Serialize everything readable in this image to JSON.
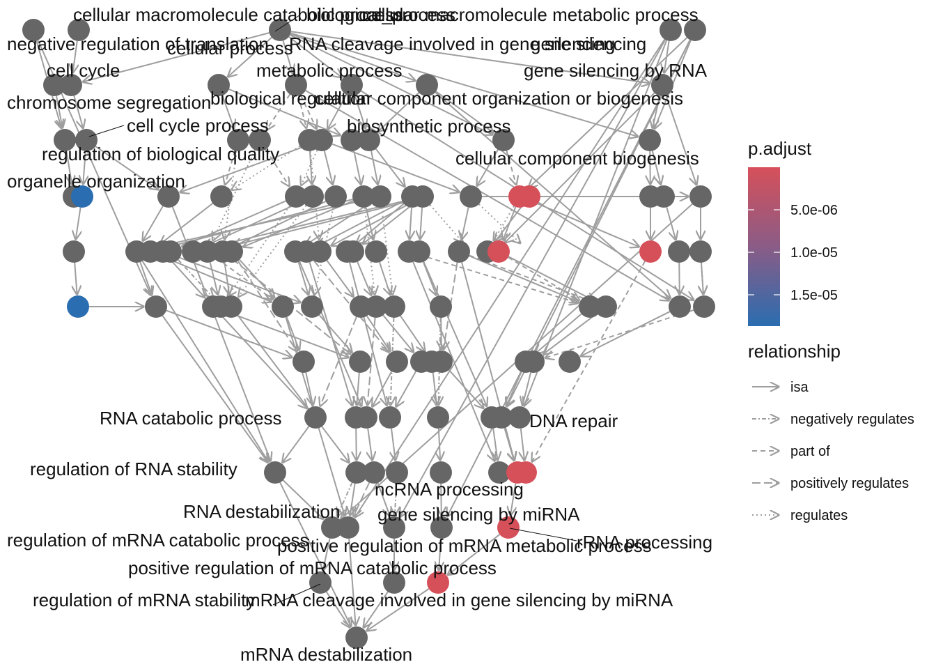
{
  "colors": {
    "node_default": "#666666",
    "node_low": "#2a6db0",
    "node_high": "#d6505a",
    "edge": "#9e9e9e"
  },
  "labels": {
    "cellular_macromolecule_catabolic_process": "cellular macromolecule catabolic process",
    "biological_process": "biological_process",
    "cellular_macromolecule_metabolic_process": "cellular macromolecule metabolic process",
    "negative_regulation_of_translation": "negative regulation of translation",
    "cellular_process": "cellular process",
    "rna_cleavage_gene_silencing": "RNA cleavage involved in gene silencing",
    "gene_silencing": "gene silencing",
    "cell_cycle": "cell cycle",
    "metabolic_process": "metabolic process",
    "gene_silencing_by_rna": "gene silencing by RNA",
    "chromosome_segregation": "chromosome segregation",
    "biological_regulation": "biological regulation",
    "cellular_component_organization_or_biogenesis": "cellular component organization or biogenesis",
    "cell_cycle_process": "cell cycle process",
    "biosynthetic_process": "biosynthetic process",
    "regulation_of_biological_quality": "regulation of biological quality",
    "cellular_component_biogenesis": "cellular component biogenesis",
    "organelle_organization": "organelle organization",
    "rna_catabolic_process": "RNA catabolic process",
    "dna_repair": "DNA repair",
    "regulation_of_rna_stability": "regulation of RNA stability",
    "ncrna_processing": "ncRNA processing",
    "rna_destabilization": "RNA destabilization",
    "gene_silencing_by_mirna": "gene silencing by miRNA",
    "regulation_of_mrna_catabolic_process": "regulation of mRNA catabolic process",
    "rrna_processing": "rRNA processing",
    "positive_regulation_of_mrna_metabolic_process": "positive regulation of mRNA metabolic process",
    "positive_regulation_of_mrna_catabolic_process": "positive regulation of mRNA catabolic process",
    "regulation_of_mrna_stability": "regulation of mRNA stability",
    "mirna_cleavage_gene_silencing": "mRNA cleavage involved in gene silencing by miRNA",
    "mrna_destabilization": "mRNA destabilization"
  },
  "legend": {
    "padjust_title": "p.adjust",
    "padjust_ticks": [
      "5.0e-06",
      "1.0e-05",
      "1.5e-05"
    ],
    "relationship_title": "relationship",
    "relationship_items": [
      {
        "label": "isa",
        "style": "solid"
      },
      {
        "label": "negatively regulates",
        "style": "dotdash"
      },
      {
        "label": "part of",
        "style": "dashed"
      },
      {
        "label": "positively regulates",
        "style": "longdash"
      },
      {
        "label": "regulates",
        "style": "dotted"
      }
    ]
  }
}
